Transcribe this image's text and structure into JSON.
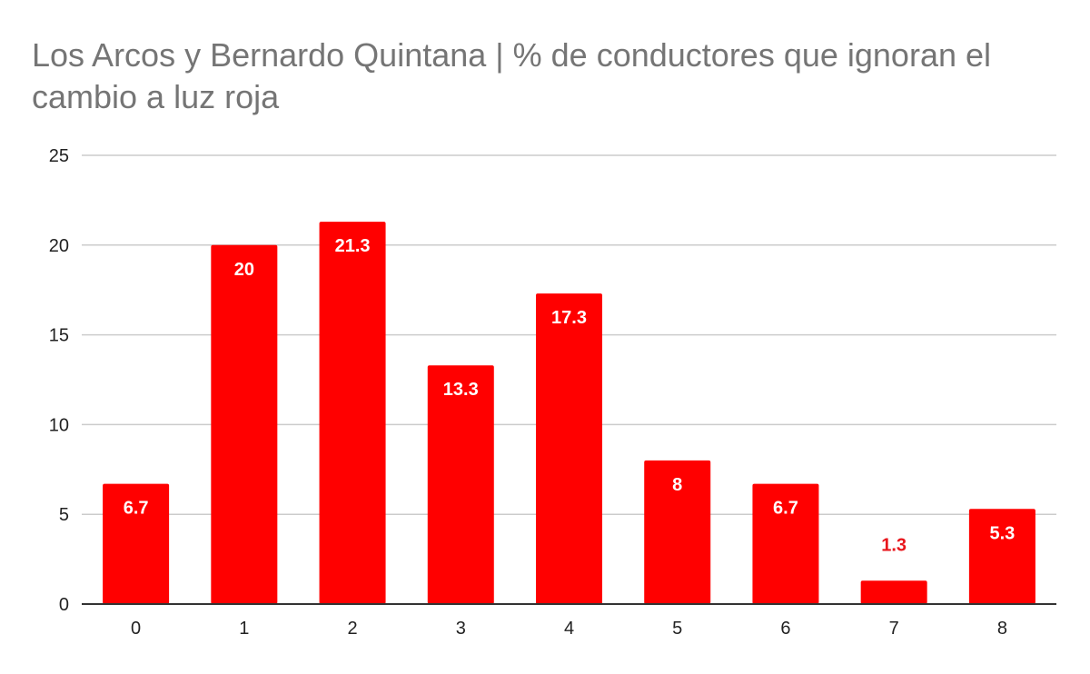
{
  "chart_data": {
    "type": "bar",
    "title": "Los Arcos y Bernardo Quintana | % de conductores que ignoran el cambio a luz roja",
    "xlabel": "",
    "ylabel": "",
    "categories": [
      "0",
      "1",
      "2",
      "3",
      "4",
      "5",
      "6",
      "7",
      "8"
    ],
    "values": [
      6.7,
      20,
      21.3,
      13.3,
      17.3,
      8,
      6.7,
      1.3,
      5.3
    ],
    "data_labels": [
      "6.7",
      "20",
      "21.3",
      "13.3",
      "17.3",
      "8",
      "6.7",
      "1.3",
      "5.3"
    ],
    "ylim": [
      0,
      25
    ],
    "yticks": [
      0,
      5,
      10,
      15,
      20,
      25
    ],
    "ytick_labels": [
      "0",
      "5",
      "10",
      "15",
      "20",
      "25"
    ],
    "grid": true,
    "legend": "none",
    "bar_color": "#ff0000",
    "label_inside_color": "#ffffff",
    "label_outside_color": "#e8161c",
    "title_color": "#757575",
    "grid_color": "#cccccc",
    "axis_color": "#333333"
  }
}
